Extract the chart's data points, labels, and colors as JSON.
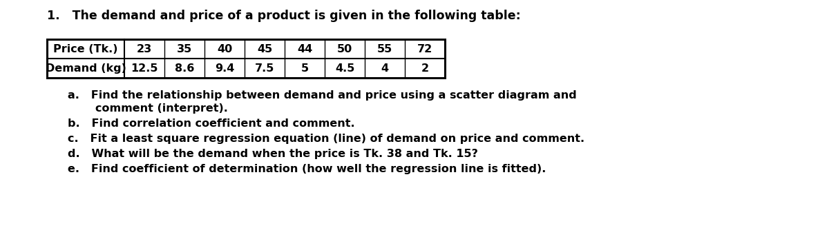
{
  "title": "1.   The demand and price of a product is given in the following table:",
  "table_headers": [
    "Price (Tk.)",
    "Demand (kg)"
  ],
  "price_values": [
    "23",
    "35",
    "40",
    "45",
    "44",
    "50",
    "55",
    "72"
  ],
  "demand_values": [
    "12.5",
    "8.6",
    "9.4",
    "7.5",
    "5",
    "4.5",
    "4",
    "2"
  ],
  "q_a1": "a.   Find the relationship between demand and price using a scatter diagram and",
  "q_a2": "comment (interpret).",
  "q_b": "b.   Find correlation coefficient and comment.",
  "q_c": "c.   Fit a least square regression equation (line) of demand on price and comment.",
  "q_d": "d.   What will be the demand when the price is Tk. 38 and Tk. 15?",
  "q_e": "e.   Find coefficient of determination (how well the regression line is fitted).",
  "bg_color": "#ffffff",
  "text_color": "#000000",
  "font_size_title": 12.5,
  "font_size_table": 11.5,
  "font_size_questions": 11.5
}
